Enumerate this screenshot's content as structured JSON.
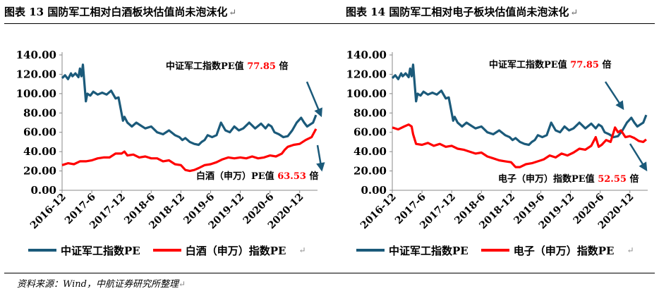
{
  "figures": {
    "left_title": "图表 13 国防军工相对白酒板块估值尚未泡沫化",
    "right_title": "图表 14 国防军工相对电子板块估值尚未泡沫化",
    "source": "资料来源：Wind，中航证券研究所整理"
  },
  "colors": {
    "military": "#1b5a7a",
    "other": "#ff0000",
    "annotation_blue": "#1b5a7a"
  },
  "chart_data": [
    {
      "type": "line",
      "title": "图表 13 国防军工相对白酒板块估值尚未泡沫化",
      "x_ticks": [
        "2016-12",
        "2017-6",
        "2017-12",
        "2018-6",
        "2018-12",
        "2019-6",
        "2019-12",
        "2020-6",
        "2020-12"
      ],
      "y_ticks": [
        "0.00",
        "20.00",
        "40.00",
        "60.00",
        "80.00",
        "100.00",
        "120.00",
        "140.00"
      ],
      "ylim": [
        0,
        140
      ],
      "x_range": [
        0,
        8.6
      ],
      "series": [
        {
          "name": "中证军工指数PE",
          "x": [
            0,
            0.1,
            0.2,
            0.3,
            0.35,
            0.45,
            0.55,
            0.6,
            0.65,
            0.7,
            0.75,
            0.8,
            0.85,
            0.95,
            1.05,
            1.2,
            1.35,
            1.5,
            1.65,
            1.8,
            1.9,
            2.0,
            2.05,
            2.1,
            2.2,
            2.35,
            2.5,
            2.65,
            2.8,
            3.0,
            3.2,
            3.4,
            3.6,
            3.8,
            3.95,
            4.05,
            4.15,
            4.3,
            4.45,
            4.6,
            4.7,
            4.8,
            4.9,
            5.05,
            5.2,
            5.35,
            5.5,
            5.65,
            5.8,
            5.95,
            6.1,
            6.3,
            6.5,
            6.7,
            6.85,
            6.95,
            7.05,
            7.15,
            7.3,
            7.45,
            7.6,
            7.75,
            7.9,
            8.05,
            8.15,
            8.25,
            8.35,
            8.45,
            8.55
          ],
          "y": [
            116,
            119,
            115,
            121,
            118,
            121,
            117,
            126,
            118,
            130,
            111,
            92,
            100,
            98,
            102,
            99,
            101,
            99,
            103,
            95,
            96,
            80,
            72,
            76,
            70,
            66,
            70,
            67,
            64,
            66,
            60,
            58,
            62,
            57,
            55,
            52,
            54,
            50,
            48,
            47,
            50,
            52,
            57,
            55,
            57,
            70,
            62,
            60,
            66,
            62,
            64,
            70,
            64,
            69,
            64,
            68,
            66,
            60,
            58,
            55,
            56,
            62,
            70,
            75,
            70,
            66,
            68,
            70,
            77.85
          ]
        },
        {
          "name": "白酒（申万）指数PE",
          "x": [
            0,
            0.2,
            0.4,
            0.6,
            0.8,
            1.0,
            1.2,
            1.4,
            1.6,
            1.8,
            2.0,
            2.1,
            2.2,
            2.4,
            2.6,
            2.8,
            3.0,
            3.2,
            3.4,
            3.6,
            3.8,
            4.0,
            4.15,
            4.3,
            4.45,
            4.6,
            4.8,
            5.0,
            5.2,
            5.4,
            5.6,
            5.8,
            6.0,
            6.2,
            6.4,
            6.6,
            6.8,
            7.0,
            7.2,
            7.4,
            7.5,
            7.6,
            7.8,
            8.0,
            8.2,
            8.4,
            8.55
          ],
          "y": [
            26,
            28,
            27,
            30,
            30,
            31,
            33,
            34,
            34,
            38,
            38,
            40,
            36,
            37,
            34,
            35,
            33,
            33,
            30,
            31,
            27,
            26,
            21,
            20,
            21,
            23,
            26,
            27,
            29,
            32,
            34,
            33,
            34,
            33,
            35,
            33,
            34,
            36,
            35,
            38,
            42,
            45,
            47,
            48,
            52,
            55,
            63.53
          ]
        }
      ],
      "annotations": [
        {
          "prefix": "中证军工指数PE值 ",
          "value": "77.85",
          "suffix": " 倍"
        },
        {
          "prefix": "白酒（申万）PE值 ",
          "value": "63.53",
          "suffix": " 倍"
        }
      ],
      "legend": [
        "中证军工指数PE",
        "白酒（申万）指数PE"
      ]
    },
    {
      "type": "line",
      "title": "图表 14 国防军工相对电子板块估值尚未泡沫化",
      "x_ticks": [
        "2016-12",
        "2017-6",
        "2017-12",
        "2018-6",
        "2018-12",
        "2019-6",
        "2019-12",
        "2020-6",
        "2020-12"
      ],
      "y_ticks": [
        "0.00",
        "20.00",
        "40.00",
        "60.00",
        "80.00",
        "100.00",
        "120.00",
        "140.00"
      ],
      "ylim": [
        0,
        140
      ],
      "x_range": [
        0,
        8.6
      ],
      "series": [
        {
          "name": "中证军工指数PE",
          "x": [
            0,
            0.1,
            0.2,
            0.3,
            0.35,
            0.45,
            0.55,
            0.6,
            0.65,
            0.7,
            0.75,
            0.8,
            0.85,
            0.95,
            1.05,
            1.2,
            1.35,
            1.5,
            1.65,
            1.8,
            1.9,
            2.0,
            2.05,
            2.1,
            2.2,
            2.35,
            2.5,
            2.65,
            2.8,
            3.0,
            3.2,
            3.4,
            3.6,
            3.8,
            3.95,
            4.05,
            4.15,
            4.3,
            4.45,
            4.6,
            4.7,
            4.8,
            4.9,
            5.05,
            5.2,
            5.35,
            5.5,
            5.65,
            5.8,
            5.95,
            6.1,
            6.3,
            6.5,
            6.7,
            6.85,
            6.95,
            7.05,
            7.15,
            7.3,
            7.45,
            7.6,
            7.75,
            7.9,
            8.05,
            8.15,
            8.25,
            8.35,
            8.45,
            8.55
          ],
          "y": [
            116,
            119,
            115,
            121,
            118,
            121,
            117,
            126,
            118,
            130,
            111,
            92,
            100,
            98,
            102,
            99,
            101,
            99,
            103,
            95,
            96,
            80,
            72,
            76,
            70,
            66,
            70,
            67,
            64,
            66,
            60,
            58,
            62,
            57,
            55,
            52,
            54,
            50,
            48,
            47,
            50,
            52,
            57,
            55,
            57,
            70,
            62,
            60,
            66,
            62,
            64,
            70,
            64,
            69,
            64,
            68,
            66,
            60,
            58,
            55,
            56,
            62,
            70,
            75,
            70,
            66,
            68,
            70,
            77.85
          ]
        },
        {
          "name": "电子（申万）指数PE",
          "x": [
            0,
            0.2,
            0.4,
            0.55,
            0.65,
            0.7,
            0.8,
            1.0,
            1.2,
            1.4,
            1.6,
            1.8,
            2.0,
            2.2,
            2.4,
            2.6,
            2.8,
            3.0,
            3.2,
            3.4,
            3.6,
            3.8,
            4.0,
            4.15,
            4.3,
            4.5,
            4.7,
            4.9,
            5.1,
            5.3,
            5.5,
            5.7,
            5.9,
            6.1,
            6.3,
            6.5,
            6.7,
            6.85,
            6.95,
            7.05,
            7.2,
            7.35,
            7.5,
            7.6,
            7.7,
            7.85,
            8.0,
            8.15,
            8.3,
            8.45,
            8.55
          ],
          "y": [
            65,
            63,
            66,
            68,
            66,
            58,
            48,
            47,
            49,
            46,
            48,
            45,
            46,
            43,
            42,
            40,
            38,
            39,
            35,
            33,
            31,
            30,
            29,
            24,
            24,
            27,
            28,
            30,
            32,
            36,
            34,
            38,
            36,
            39,
            43,
            42,
            46,
            55,
            45,
            47,
            52,
            50,
            65,
            60,
            62,
            55,
            56,
            54,
            51,
            50,
            52.55
          ]
        }
      ],
      "annotations": [
        {
          "prefix": "中证军工指数PE值 ",
          "value": "77.85",
          "suffix": " 倍"
        },
        {
          "prefix": "电子（申万）指数PE值 ",
          "value": "52.55",
          "suffix": " 倍"
        }
      ],
      "legend": [
        "中证军工指数PE",
        "电子（申万）指数PE"
      ]
    }
  ]
}
